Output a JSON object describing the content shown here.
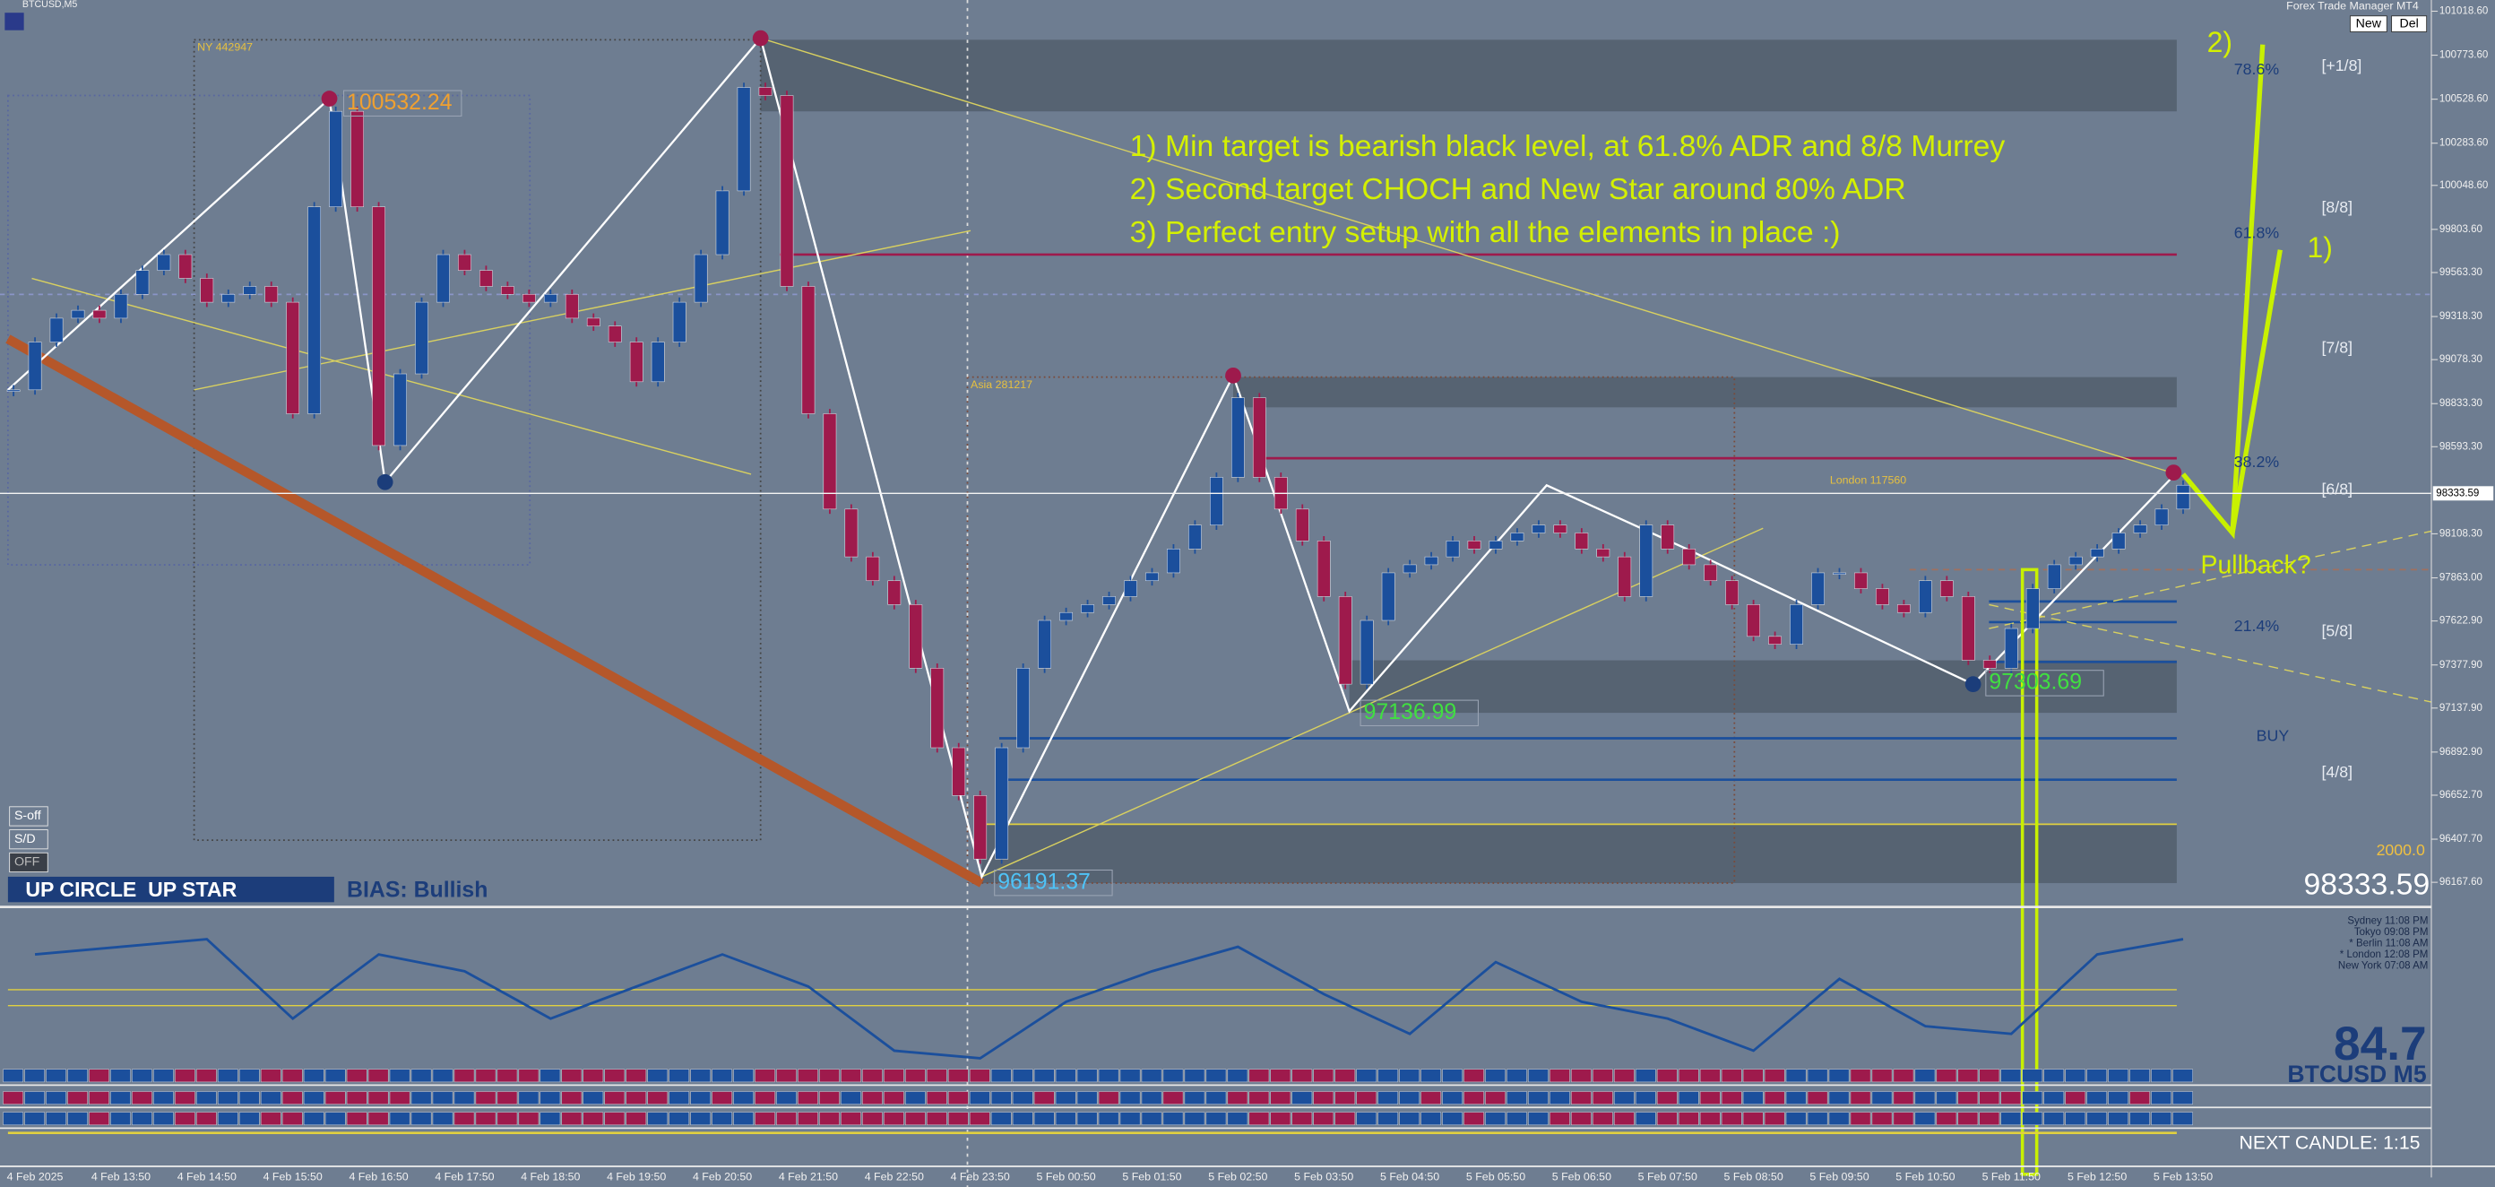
{
  "chart_data": {
    "type": "candlestick",
    "title": "BTCUSD,M5",
    "categories": [
      null,
      "4 Feb 2025",
      null,
      null,
      null,
      "4 Feb 13:50",
      null,
      null,
      null,
      "4 Feb 14:50",
      null,
      null,
      null,
      "4 Feb 15:50",
      null,
      null,
      null,
      "4 Feb 16:50",
      null,
      null,
      null,
      "4 Feb 17:50",
      null,
      null,
      null,
      "4 Feb 18:50",
      null,
      null,
      null,
      "4 Feb 19:50",
      null,
      null,
      null,
      "4 Feb 20:50",
      null,
      null,
      null,
      "4 Feb 21:50",
      null,
      null,
      null,
      "4 Feb 22:50",
      null,
      null,
      null,
      "4 Feb 23:50",
      null,
      null,
      null,
      "5 Feb 00:50",
      null,
      null,
      null,
      "5 Feb 01:50",
      null,
      null,
      null,
      "5 Feb 02:50",
      null,
      null,
      null,
      "5 Feb 03:50",
      null,
      null,
      null,
      "5 Feb 04:50",
      null,
      null,
      null,
      "5 Feb 05:50",
      null,
      null,
      null,
      "5 Feb 06:50",
      null,
      null,
      null,
      "5 Feb 07:50",
      null,
      null,
      null,
      "5 Feb 08:50",
      null,
      null,
      null,
      "5 Feb 09:50",
      null,
      null,
      null,
      "5 Feb 10:50",
      null,
      null,
      null,
      "5 Feb 11:50",
      null,
      null,
      null,
      "5 Feb 12:50",
      null,
      null,
      null,
      "5 Feb 13:50"
    ],
    "values": [
      98910,
      99176,
      99309,
      99353,
      99309,
      99442,
      99575,
      99663,
      99531,
      99398,
      99442,
      99486,
      99398,
      98777,
      99929,
      100461,
      99929,
      98600,
      98999,
      99398,
      99663,
      99575,
      99486,
      99442,
      99398,
      99442,
      99309,
      99265,
      99176,
      98955,
      99176,
      99398,
      99663,
      100018,
      100594,
      100549,
      99486,
      98777,
      98246,
      97980,
      97847,
      97714,
      97360,
      96917,
      96651,
      96297,
      96917,
      97360,
      97626,
      97670,
      97714,
      97759,
      97847,
      97891,
      98024,
      98157,
      98423,
      98866,
      98423,
      98246,
      98069,
      97759,
      97271,
      97626,
      97891,
      97936,
      97980,
      98069,
      98024,
      98069,
      98113,
      98157,
      98113,
      98024,
      97980,
      97759,
      98157,
      98024,
      97936,
      97847,
      97714,
      97537,
      97493,
      97714,
      97891,
      97891,
      97803,
      97714,
      97670,
      97847,
      97759,
      97404,
      97360,
      97581,
      97803,
      97936,
      97980,
      98024,
      98113,
      98157,
      98246,
      98379
    ],
    "up_color": "#1b4f9c",
    "down_color": "#9e1a4c",
    "ylim": [
      96048,
      101081
    ],
    "yticks": [
      {
        "value": 101018.6,
        "label": "101018.60"
      },
      {
        "value": 100773.6,
        "label": "100773.60"
      },
      {
        "value": 100528.6,
        "label": "100528.60"
      },
      {
        "value": 100283.6,
        "label": "100283.60"
      },
      {
        "value": 100048.6,
        "label": "100048.60"
      },
      {
        "value": 99803.6,
        "label": "99803.60"
      },
      {
        "value": 99563.3,
        "label": "99563.30"
      },
      {
        "value": 99318.3,
        "label": "99318.30"
      },
      {
        "value": 99078.3,
        "label": "99078.30"
      },
      {
        "value": 98833.3,
        "label": "98833.30"
      },
      {
        "value": 98593.3,
        "label": "98593.30"
      },
      {
        "value": 98108.3,
        "label": "98108.30"
      },
      {
        "value": 97863,
        "label": "97863.00"
      },
      {
        "value": 97622.9,
        "label": "97622.90"
      },
      {
        "value": 97377.9,
        "label": "97377.90"
      },
      {
        "value": 97137.9,
        "label": "97137.90"
      },
      {
        "value": 96892.9,
        "label": "96892.90"
      },
      {
        "value": 96652.7,
        "label": "96652.70"
      },
      {
        "value": 96407.7,
        "label": "96407.70"
      },
      {
        "value": 96167.6,
        "label": "96167.60"
      }
    ],
    "current_price": 98333.59,
    "swing_labels": [
      100532.24,
      96191.37,
      97136.99,
      97303.69
    ],
    "session_labels": [
      "NY 442947",
      "Asia 281217",
      "London 117560"
    ],
    "annotations": [
      "1) Min target is bearish black level, at 61.8% ADR and 8/8 Murrey",
      "2) Second target CHOCH and New Star around 80% ADR",
      "3) Perfect entry setup with all the elements in place :)"
    ],
    "projection_labels": [
      "2)",
      "1)",
      "Pullback?"
    ],
    "murrey_labels": [
      "[+1/8]",
      "[8/8]",
      "[7/8]",
      "[6/8]",
      "[5/8]",
      "[4/8]"
    ],
    "adr_levels": [
      {
        "value": 78.6,
        "label": "78.6%"
      },
      {
        "value": 61.8,
        "label": "61.8%"
      },
      {
        "value": 38.2,
        "label": "38.2%"
      },
      {
        "value": 21.4,
        "label": "21.4%"
      }
    ],
    "signal": "BUY",
    "adr_value": {
      "value": 2000,
      "label": "2000.0"
    },
    "oscillator": {
      "values": [
        71,
        76,
        81,
        29,
        71,
        60,
        29,
        50,
        71,
        50,
        8,
        3,
        40,
        60,
        76,
        45,
        19,
        66,
        40,
        29,
        8,
        55,
        24,
        19,
        71,
        81
      ],
      "ylim": [
        0,
        100
      ],
      "color": "#1b4f9c"
    },
    "strength": 84.7,
    "symbol_label": "BTCUSD M5",
    "next_candle": "NEXT CANDLE: 1:15",
    "bias_box": "UP CIRCLE  UP STAR",
    "bias": "BIAS: Bullish",
    "switches": [
      "S-off",
      "S/D",
      "OFF"
    ],
    "clocks": [
      "Sydney 11:08 PM",
      "Tokyo 09:08 PM",
      "* Berlin 11:08 AM",
      "* London 12:08 PM",
      "New York 07:08 AM"
    ]
  },
  "toolbar": {
    "app": "Forex Trade Manager MT4",
    "buttons": [
      "New",
      "Del"
    ]
  }
}
